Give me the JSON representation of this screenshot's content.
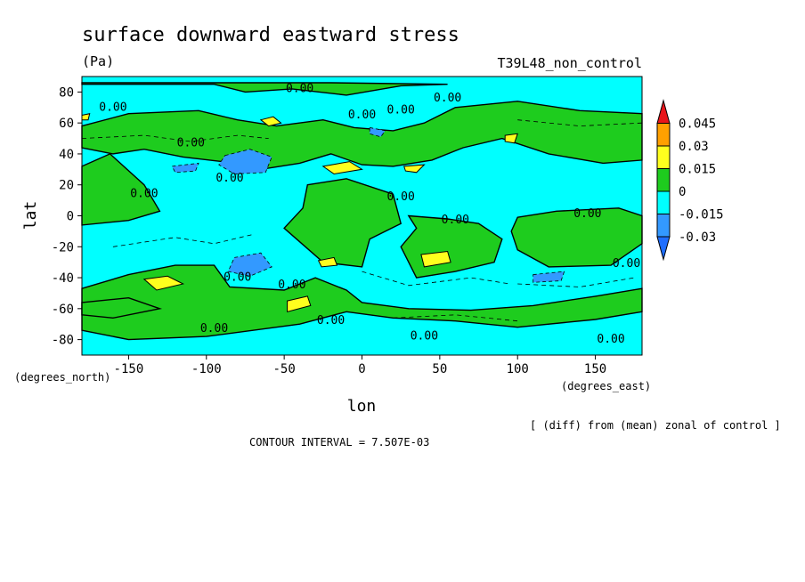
{
  "chart_data": {
    "type": "heatmap",
    "title": "surface downward eastward stress",
    "units": "(Pa)",
    "experiment": "T39L48_non_control",
    "xlabel": "lon",
    "ylabel": "lat",
    "xunits": "(degrees_east)",
    "yunits": "(degrees_north)",
    "xlim": [
      -180,
      180
    ],
    "ylim": [
      -90,
      90
    ],
    "xticks": [
      -150,
      -100,
      -50,
      0,
      50,
      100,
      150
    ],
    "xtick_labels": [
      "-150",
      "-100",
      "-50",
      "0",
      "50",
      "100",
      "150"
    ],
    "yticks": [
      -80,
      -60,
      -40,
      -20,
      0,
      20,
      40,
      60,
      80
    ],
    "ytick_labels": [
      "-80",
      "-60",
      "-40",
      "-20",
      "0",
      "20",
      "40",
      "60",
      "80"
    ],
    "note": "[ (diff) from (mean) zonal of control ]",
    "contour_interval": "CONTOUR INTERVAL = 7.507E-03",
    "levels": [
      -0.03,
      -0.015,
      0,
      0.015,
      0.03,
      0.045
    ],
    "colorbar": {
      "labels": [
        "0.045",
        "0.03",
        "0.015",
        "0",
        "-0.015",
        "-0.03"
      ],
      "colors": [
        "#e8151a",
        "#ffa000",
        "#ffff1e",
        "#1ecc1e",
        "#00ffff",
        "#3399ff",
        "#1f6eff"
      ]
    },
    "contour_label": "0.00",
    "regions": {
      "positive": [
        [
          [
            -180,
            85
          ],
          [
            -95,
            85
          ],
          [
            -75,
            80
          ],
          [
            -45,
            82
          ],
          [
            -10,
            78
          ],
          [
            25,
            84
          ],
          [
            55,
            85
          ],
          [
            -20,
            86
          ],
          [
            -180,
            86
          ]
        ],
        [
          [
            -180,
            58
          ],
          [
            -150,
            66
          ],
          [
            -105,
            68
          ],
          [
            -80,
            62
          ],
          [
            -55,
            58
          ],
          [
            -25,
            62
          ],
          [
            -5,
            57
          ],
          [
            20,
            55
          ],
          [
            40,
            60
          ],
          [
            60,
            70
          ],
          [
            100,
            74
          ],
          [
            140,
            68
          ],
          [
            180,
            66
          ],
          [
            180,
            36
          ],
          [
            155,
            34
          ],
          [
            120,
            40
          ],
          [
            90,
            50
          ],
          [
            65,
            44
          ],
          [
            45,
            36
          ],
          [
            20,
            32
          ],
          [
            0,
            33
          ],
          [
            -20,
            40
          ],
          [
            -40,
            34
          ],
          [
            -65,
            30
          ],
          [
            -90,
            35
          ],
          [
            -115,
            38
          ],
          [
            -140,
            43
          ],
          [
            -160,
            40
          ],
          [
            -180,
            44
          ]
        ],
        [
          [
            -180,
            32
          ],
          [
            -162,
            40
          ],
          [
            -140,
            20
          ],
          [
            -130,
            3
          ],
          [
            -150,
            -3
          ],
          [
            -180,
            -6
          ]
        ],
        [
          [
            -35,
            20
          ],
          [
            -10,
            24
          ],
          [
            20,
            14
          ],
          [
            25,
            -5
          ],
          [
            5,
            -15
          ],
          [
            0,
            -33
          ],
          [
            -25,
            -30
          ],
          [
            -50,
            -8
          ],
          [
            -38,
            5
          ]
        ],
        [
          [
            30,
            0
          ],
          [
            55,
            -2
          ],
          [
            75,
            -5
          ],
          [
            90,
            -15
          ],
          [
            85,
            -30
          ],
          [
            60,
            -36
          ],
          [
            35,
            -40
          ],
          [
            25,
            -20
          ],
          [
            35,
            -8
          ]
        ],
        [
          [
            100,
            -1
          ],
          [
            125,
            3
          ],
          [
            165,
            5
          ],
          [
            180,
            0
          ],
          [
            180,
            -18
          ],
          [
            160,
            -32
          ],
          [
            120,
            -33
          ],
          [
            100,
            -22
          ],
          [
            96,
            -10
          ]
        ],
        [
          [
            -180,
            -47
          ],
          [
            -150,
            -38
          ],
          [
            -120,
            -32
          ],
          [
            -95,
            -32
          ],
          [
            -85,
            -46
          ],
          [
            -50,
            -48
          ],
          [
            -30,
            -40
          ],
          [
            -10,
            -48
          ],
          [
            0,
            -56
          ],
          [
            30,
            -60
          ],
          [
            70,
            -61
          ],
          [
            110,
            -58
          ],
          [
            150,
            -52
          ],
          [
            180,
            -47
          ],
          [
            180,
            -62
          ],
          [
            150,
            -67
          ],
          [
            100,
            -72
          ],
          [
            60,
            -68
          ],
          [
            20,
            -66
          ],
          [
            -10,
            -62
          ],
          [
            -40,
            -70
          ],
          [
            -100,
            -78
          ],
          [
            -150,
            -80
          ],
          [
            -180,
            -74
          ]
        ],
        [
          [
            -180,
            -56
          ],
          [
            -150,
            -53
          ],
          [
            -130,
            -60
          ],
          [
            -160,
            -66
          ],
          [
            -180,
            -64
          ]
        ]
      ],
      "strong_positive": [
        [
          [
            -65,
            62
          ],
          [
            -57,
            64
          ],
          [
            -52,
            60
          ],
          [
            -60,
            58
          ]
        ],
        [
          [
            -25,
            32
          ],
          [
            -8,
            35
          ],
          [
            0,
            30
          ],
          [
            -18,
            27
          ]
        ],
        [
          [
            -140,
            -41
          ],
          [
            -125,
            -39
          ],
          [
            -115,
            -44
          ],
          [
            -132,
            -48
          ]
        ],
        [
          [
            -48,
            -55
          ],
          [
            -35,
            -52
          ],
          [
            -33,
            -58
          ],
          [
            -48,
            -62
          ]
        ],
        [
          [
            -28,
            -29
          ],
          [
            -18,
            -27
          ],
          [
            -16,
            -32
          ],
          [
            -26,
            -33
          ]
        ],
        [
          [
            38,
            -25
          ],
          [
            55,
            -23
          ],
          [
            57,
            -30
          ],
          [
            40,
            -33
          ]
        ],
        [
          [
            27,
            32
          ],
          [
            40,
            33
          ],
          [
            35,
            28
          ],
          [
            28,
            29
          ]
        ],
        [
          [
            92,
            52
          ],
          [
            100,
            53
          ],
          [
            98,
            47
          ],
          [
            92,
            48
          ]
        ],
        [
          [
            -180,
            65
          ],
          [
            -175,
            66
          ],
          [
            -176,
            62
          ],
          [
            -180,
            62
          ]
        ]
      ],
      "negative": [
        [
          [
            -88,
            39
          ],
          [
            -72,
            43
          ],
          [
            -58,
            38
          ],
          [
            -62,
            28
          ],
          [
            -82,
            27
          ],
          [
            -92,
            33
          ]
        ],
        [
          [
            -82,
            -27
          ],
          [
            -65,
            -24
          ],
          [
            -58,
            -33
          ],
          [
            -72,
            -39
          ],
          [
            -86,
            -36
          ]
        ],
        [
          [
            5,
            57
          ],
          [
            15,
            55
          ],
          [
            12,
            51
          ],
          [
            5,
            53
          ]
        ],
        [
          [
            -122,
            32
          ],
          [
            -105,
            34
          ],
          [
            -107,
            29
          ],
          [
            -120,
            28
          ]
        ],
        [
          [
            110,
            -38
          ],
          [
            130,
            -36
          ],
          [
            128,
            -42
          ],
          [
            110,
            -43
          ]
        ]
      ]
    }
  }
}
